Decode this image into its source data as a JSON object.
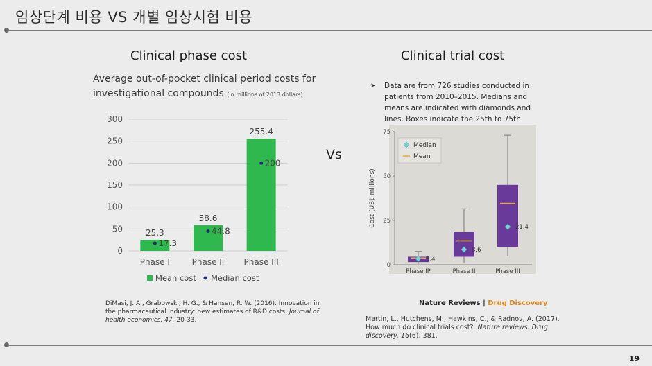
{
  "slide": {
    "title": "임상단계 비용 VS 개별 임상시험 비용",
    "vs_label": "Vs",
    "page_number": "19"
  },
  "left": {
    "heading": "Clinical phase cost",
    "subtitle_main": "Average out-of-pocket clinical period costs for investigational compounds",
    "subtitle_small": "(in millions of 2013 dollars)",
    "reference_text": "DiMasi, J. A., Grabowski, H. G., & Hansen, R. W. (2016). Innovation in the pharmaceutical industry: new estimates of R&D costs. ",
    "reference_journal": "Journal of health economics, 47,",
    "reference_pages": " 20-33."
  },
  "right": {
    "heading": "Clinical trial cost",
    "note_bullet": "➤",
    "note": "Data are from 726 studies conducted in patients from 2010–2015. Medians and means are indicated with diamonds and lines. Boxes indicate the 25th to 75th",
    "source_brand": "Nature Reviews",
    "source_sep": " | ",
    "source_section": "Drug Discovery",
    "reference_text": "Martin, L., Hutchens, M., Hawkins, C., & Radnov, A. (2017). How much do clinical trials cost?. ",
    "reference_journal": "Nature reviews. Drug discovery, 16",
    "reference_pages": "(6), 381."
  },
  "colors": {
    "bar_green": "#2eb84e",
    "median_dot": "#1e2a6e",
    "box_purple": "#6a3a9a",
    "median_diamond": "#7fd0d8",
    "mean_line": "#e5b03a",
    "panel_bg": "#dcdad4"
  },
  "chart_data": [
    {
      "type": "bar",
      "categories": [
        "Phase I",
        "Phase II",
        "Phase III"
      ],
      "series": [
        {
          "name": "Mean cost",
          "values": [
            25.3,
            58.6,
            255.4
          ]
        },
        {
          "name": "Median cost",
          "values": [
            17.3,
            44.8,
            200
          ]
        }
      ],
      "mean_labels": [
        "25.3",
        "58.6",
        "255.4"
      ],
      "median_labels": [
        "17.3",
        "44.8",
        "200"
      ],
      "yticks": [
        0,
        50,
        100,
        150,
        200,
        250,
        300
      ],
      "ylim": [
        0,
        300
      ],
      "grid": true,
      "legend": "bottom"
    },
    {
      "type": "box",
      "categories": [
        "Phase IP",
        "Phase II",
        "Phase III"
      ],
      "ylabel": "Cost (US$ millions)",
      "yticks": [
        0,
        25,
        50,
        75
      ],
      "ylim": [
        0,
        75
      ],
      "boxes": [
        {
          "q1": 1.5,
          "q3": 4.5,
          "median": 3.4,
          "mean": 3.8,
          "whisker_low": 0.3,
          "whisker_high": 7.5,
          "median_label": "3.4"
        },
        {
          "q1": 4.5,
          "q3": 18.5,
          "median": 8.6,
          "mean": 13.5,
          "whisker_low": 1.0,
          "whisker_high": 31.5,
          "median_label": "8.6"
        },
        {
          "q1": 10,
          "q3": 45,
          "median": 21.4,
          "mean": 34.5,
          "whisker_low": 5.0,
          "whisker_high": 73,
          "median_label": "21.4"
        }
      ],
      "legend_items": [
        "Median",
        "Mean"
      ],
      "legend": "top-left"
    }
  ]
}
